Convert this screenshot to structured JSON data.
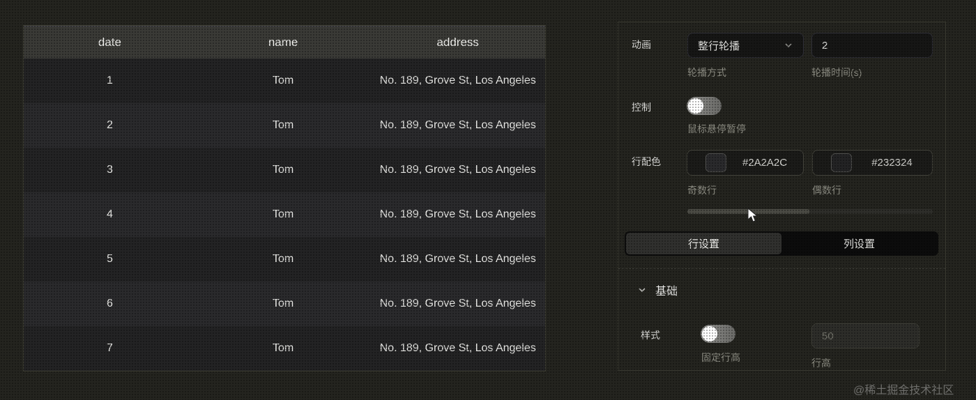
{
  "table": {
    "columns": [
      "date",
      "name",
      "address"
    ],
    "rows": [
      {
        "date": "1",
        "name": "Tom",
        "address": "No. 189, Grove St, Los Angeles"
      },
      {
        "date": "2",
        "name": "Tom",
        "address": "No. 189, Grove St, Los Angeles"
      },
      {
        "date": "3",
        "name": "Tom",
        "address": "No. 189, Grove St, Los Angeles"
      },
      {
        "date": "4",
        "name": "Tom",
        "address": "No. 189, Grove St, Los Angeles"
      },
      {
        "date": "5",
        "name": "Tom",
        "address": "No. 189, Grove St, Los Angeles"
      },
      {
        "date": "6",
        "name": "Tom",
        "address": "No. 189, Grove St, Los Angeles"
      },
      {
        "date": "7",
        "name": "Tom",
        "address": "No. 189, Grove St, Los Angeles"
      }
    ]
  },
  "panel": {
    "animation": {
      "label": "动画",
      "mode_value": "整行轮播",
      "mode_caption": "轮播方式",
      "time_value": "2",
      "time_caption": "轮播时间(s)"
    },
    "control": {
      "label": "控制",
      "toggle_state": "off",
      "toggle_caption": "鼠标悬停暂停"
    },
    "row_colors": {
      "label": "行配色",
      "odd_hex": "#2A2A2C",
      "odd_caption": "奇数行",
      "even_hex": "#232324",
      "even_caption": "偶数行"
    },
    "tabs": [
      {
        "label": "行设置",
        "active": true
      },
      {
        "label": "列设置",
        "active": false
      }
    ],
    "section_title": "基础",
    "style_row": {
      "label": "样式",
      "toggle_state": "off",
      "toggle_caption": "固定行高",
      "height_value": "50",
      "height_caption": "行高"
    }
  },
  "colors": {
    "odd_row_bg": "#232324",
    "even_row_bg": "#2A2A2C",
    "header_bg": "#3A3A36",
    "page_bg": "#24241F"
  },
  "watermark": "@稀土掘金技术社区"
}
